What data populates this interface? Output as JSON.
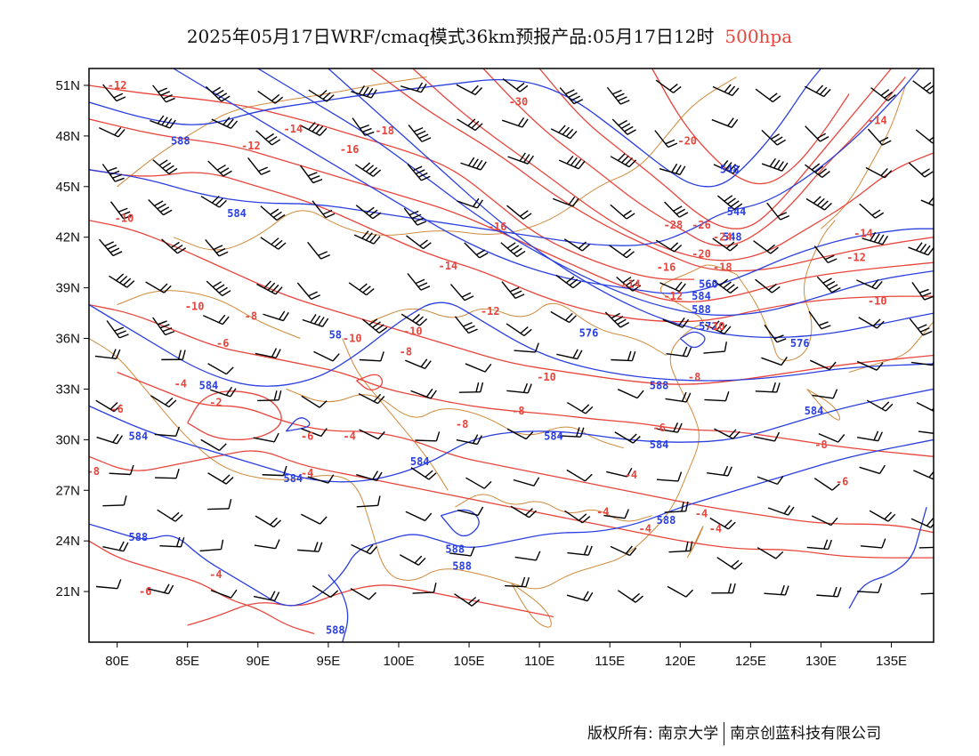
{
  "title": {
    "main": "2025年05月17日WRF/cmaq模式36km预报产品:05月17日12时",
    "level": "500hpa"
  },
  "axes": {
    "lat_labels": [
      "51N",
      "48N",
      "45N",
      "42N",
      "39N",
      "36N",
      "33N",
      "30N",
      "27N",
      "24N",
      "21N"
    ],
    "lon_labels": [
      "80E",
      "85E",
      "90E",
      "95E",
      "100E",
      "105E",
      "110E",
      "115E",
      "120E",
      "125E",
      "130E",
      "135E"
    ],
    "lon_range": [
      78,
      138
    ],
    "lat_range": [
      18,
      52
    ]
  },
  "colors": {
    "height_contour": "#2a3fe0",
    "temperature_contour": "#e8453c",
    "coastline_border": "#d08a3c",
    "wind_barb": "#000000"
  },
  "height_labels": [
    {
      "text": "588",
      "lon": 84.5,
      "lat": 47.5
    },
    {
      "text": "584",
      "lon": 88.5,
      "lon_note": "",
      "lat": 43.2
    },
    {
      "text": "58",
      "lon": 95.5,
      "lat": 36.0
    },
    {
      "text": "584",
      "lon": 86.5,
      "lat": 33.0
    },
    {
      "text": "584",
      "lon": 81.5,
      "lat": 30.0
    },
    {
      "text": "584",
      "lon": 101.5,
      "lat": 28.5
    },
    {
      "text": "584",
      "lon": 92.5,
      "lat": 27.5
    },
    {
      "text": "584",
      "lon": 111.0,
      "lat": 30.0
    },
    {
      "text": "584",
      "lon": 118.5,
      "lat": 29.5
    },
    {
      "text": "588",
      "lon": 81.5,
      "lat": 24.0
    },
    {
      "text": "588",
      "lon": 104.0,
      "lat": 23.3
    },
    {
      "text": "588",
      "lon": 104.5,
      "lat": 22.3
    },
    {
      "text": "588",
      "lon": 95.5,
      "lat": 18.5
    },
    {
      "text": "576",
      "lon": 113.5,
      "lat": 36.1
    },
    {
      "text": "588",
      "lon": 118.5,
      "lat": 33.0
    },
    {
      "text": "584",
      "lon": 129.5,
      "lat": 31.5
    },
    {
      "text": "576",
      "lon": 128.5,
      "lat": 35.5
    },
    {
      "text": "588",
      "lon": 119.0,
      "lat": 25.0
    },
    {
      "text": "588",
      "lon": 121.5,
      "lat": 37.5
    },
    {
      "text": "584",
      "lon": 121.5,
      "lat": 38.3
    },
    {
      "text": "560",
      "lon": 122.0,
      "lat": 39.0
    },
    {
      "text": "572",
      "lon": 122.0,
      "lat": 36.5
    },
    {
      "text": "544",
      "lon": 124.0,
      "lat": 43.3
    },
    {
      "text": "548",
      "lon": 123.5,
      "lat": 45.8
    },
    {
      "text": "548",
      "lon": 123.7,
      "lat": 41.8
    }
  ],
  "temperature_labels": [
    {
      "text": "-12",
      "lon": 80.0,
      "lat": 50.8
    },
    {
      "text": "-12",
      "lon": 89.5,
      "lat": 47.2
    },
    {
      "text": "-14",
      "lon": 92.5,
      "lat": 48.2
    },
    {
      "text": "-16",
      "lon": 96.5,
      "lat": 47.0
    },
    {
      "text": "-18",
      "lon": 99.0,
      "lat": 48.1
    },
    {
      "text": "-30",
      "lon": 108.5,
      "lat": 49.8
    },
    {
      "text": "-10",
      "lon": 80.5,
      "lat": 42.9
    },
    {
      "text": "-20",
      "lon": 120.5,
      "lat": 47.5
    },
    {
      "text": "-16",
      "lon": 107.0,
      "lat": 42.4
    },
    {
      "text": "-14",
      "lon": 103.5,
      "lat": 40.1
    },
    {
      "text": "-12",
      "lon": 106.5,
      "lat": 37.4
    },
    {
      "text": "-10",
      "lon": 85.5,
      "lat": 37.7
    },
    {
      "text": "-8",
      "lon": 89.5,
      "lat": 37.1
    },
    {
      "text": "-10",
      "lon": 96.7,
      "lat": 35.8
    },
    {
      "text": "-10",
      "lon": 101.0,
      "lat": 36.2
    },
    {
      "text": "-6",
      "lon": 87.5,
      "lat": 35.5
    },
    {
      "text": "-8",
      "lon": 100.5,
      "lat": 35.0
    },
    {
      "text": "-4",
      "lon": 84.5,
      "lat": 33.1
    },
    {
      "text": "-2",
      "lon": 87.0,
      "lat": 32.0
    },
    {
      "text": "-6",
      "lon": 93.5,
      "lat": 30.0
    },
    {
      "text": "-4",
      "lon": 96.5,
      "lat": 30.0
    },
    {
      "text": "-8",
      "lon": 104.5,
      "lat": 30.7
    },
    {
      "text": "-8",
      "lon": 108.5,
      "lat": 31.5
    },
    {
      "text": "-6",
      "lon": 80.0,
      "lat": 31.6
    },
    {
      "text": "-8",
      "lon": 78.3,
      "lat": 27.9
    },
    {
      "text": "-4",
      "lon": 93.5,
      "lat": 27.8
    },
    {
      "text": "-4",
      "lon": 116.5,
      "lat": 27.7
    },
    {
      "text": "-4",
      "lon": 114.5,
      "lat": 25.5
    },
    {
      "text": "-4",
      "lon": 117.5,
      "lat": 24.5
    },
    {
      "text": "-4",
      "lon": 121.5,
      "lat": 25.4
    },
    {
      "text": "-6",
      "lon": 82.0,
      "lat": 20.8
    },
    {
      "text": "-4",
      "lon": 87.0,
      "lat": 21.8
    },
    {
      "text": "-10",
      "lon": 110.5,
      "lat": 33.5
    },
    {
      "text": "-8",
      "lon": 121.0,
      "lat": 33.5
    },
    {
      "text": "-6",
      "lon": 118.5,
      "lat": 30.5
    },
    {
      "text": "-14",
      "lon": 116.5,
      "lat": 39.0
    },
    {
      "text": "-12",
      "lon": 119.5,
      "lat": 38.3
    },
    {
      "text": "-16",
      "lon": 119.0,
      "lat": 40.0
    },
    {
      "text": "-18",
      "lon": 123.0,
      "lat": 40.0
    },
    {
      "text": "-20",
      "lon": 121.5,
      "lat": 40.8
    },
    {
      "text": "-28",
      "lon": 119.5,
      "lat": 42.5
    },
    {
      "text": "-26",
      "lon": 121.5,
      "lat": 42.5
    },
    {
      "text": "-24",
      "lon": 123.0,
      "lat": 41.8
    },
    {
      "text": "-10",
      "lon": 122.5,
      "lat": 36.5
    },
    {
      "text": "-14",
      "lon": 133.0,
      "lat": 42.0
    },
    {
      "text": "-12",
      "lon": 132.5,
      "lat": 40.6
    },
    {
      "text": "-10",
      "lon": 134.0,
      "lat": 38.0
    },
    {
      "text": "-8",
      "lon": 130.0,
      "lat": 29.5
    },
    {
      "text": "-6",
      "lon": 131.5,
      "lat": 27.3
    },
    {
      "text": "-4",
      "lon": 122.5,
      "lat": 24.5
    },
    {
      "text": "-14",
      "lon": 134.0,
      "lat": 48.7
    }
  ],
  "footer": {
    "copyright": "版权所有: 南京大学",
    "company": "南京创蓝科技有限公司"
  }
}
